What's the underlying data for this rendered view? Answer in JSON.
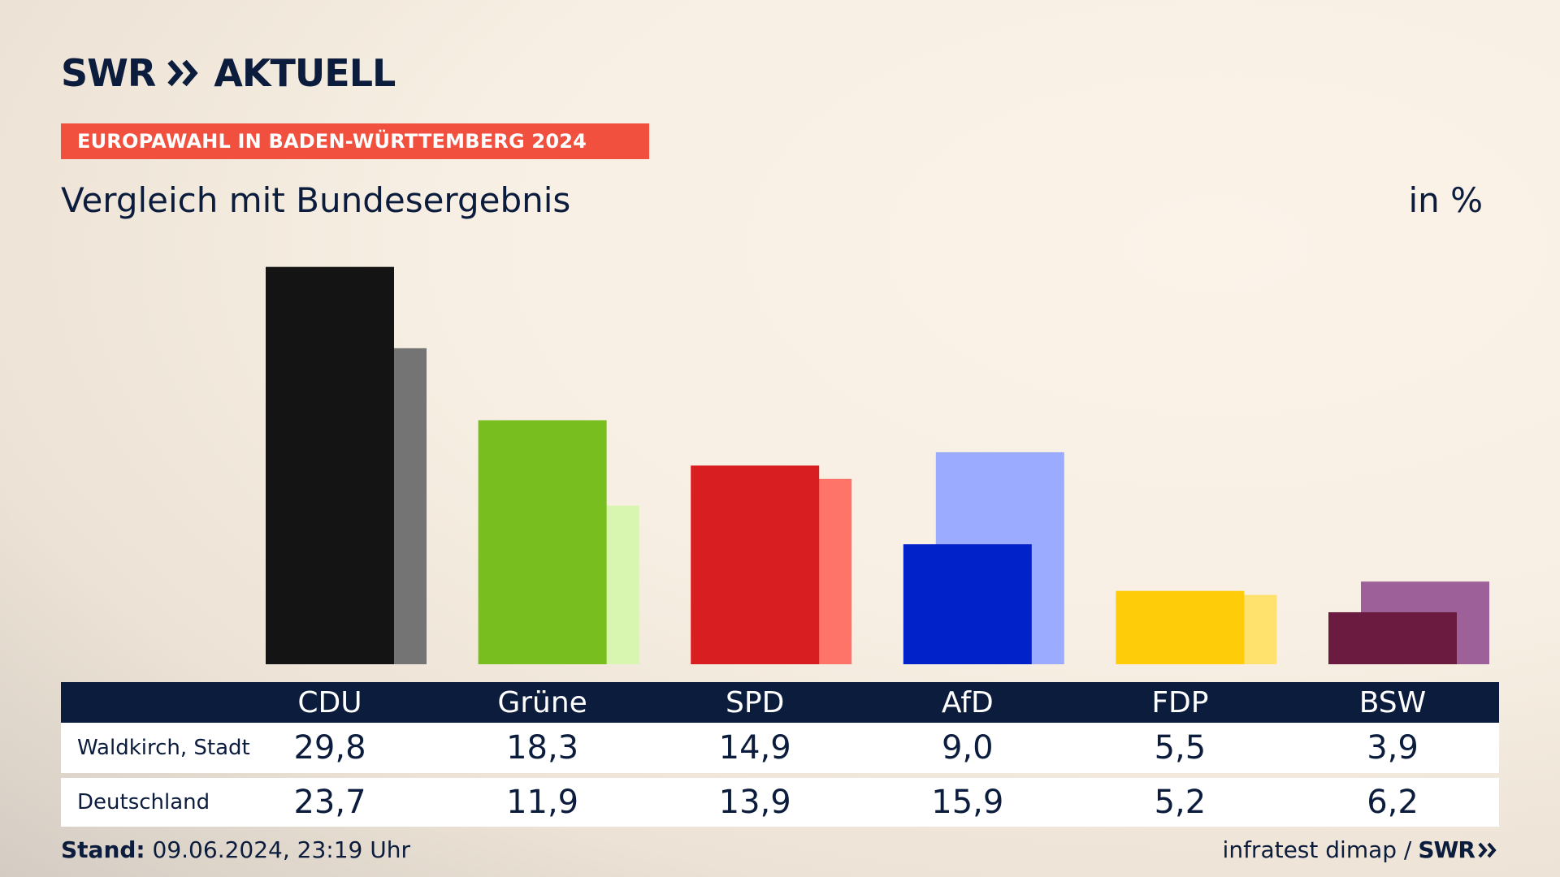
{
  "header": {
    "logo_brand": "SWR",
    "logo_text": "AKTUELL",
    "banner": "EUROPAWAHL IN BADEN-WÜRTTEMBERG 2024",
    "subtitle": "Vergleich mit Bundesergebnis",
    "unit": "in %"
  },
  "table": {
    "rows": [
      {
        "label": "Waldkirch, Stadt",
        "values": [
          "29,8",
          "18,3",
          "14,9",
          "9,0",
          "5,5",
          "3,9"
        ]
      },
      {
        "label": "Deutschland",
        "values": [
          "23,7",
          "11,9",
          "13,9",
          "15,9",
          "5,2",
          "6,2"
        ]
      }
    ]
  },
  "footer": {
    "stand_label": "Stand:",
    "stand_value": "09.06.2024, 23:19 Uhr",
    "source": "infratest dimap /",
    "source_brand": "SWR"
  },
  "chart_data": {
    "type": "bar",
    "title": "Vergleich mit Bundesergebnis",
    "unit": "in %",
    "categories": [
      "CDU",
      "Grüne",
      "SPD",
      "AfD",
      "FDP",
      "BSW"
    ],
    "series": [
      {
        "name": "Waldkirch, Stadt",
        "values": [
          29.8,
          18.3,
          14.9,
          9.0,
          5.5,
          3.9
        ]
      },
      {
        "name": "Deutschland",
        "values": [
          23.7,
          11.9,
          13.9,
          15.9,
          5.2,
          6.2
        ]
      }
    ],
    "colors": {
      "primary": [
        "#141414",
        "#78be1e",
        "#d81e20",
        "#0022c8",
        "#ffcc0a",
        "#6b1a40"
      ],
      "secondary": [
        "#747474",
        "#d9f6b0",
        "#ff7469",
        "#9babff",
        "#ffe16e",
        "#9d6099"
      ]
    },
    "ylim": [
      0,
      30
    ],
    "grid": false,
    "legend": "table-below"
  }
}
